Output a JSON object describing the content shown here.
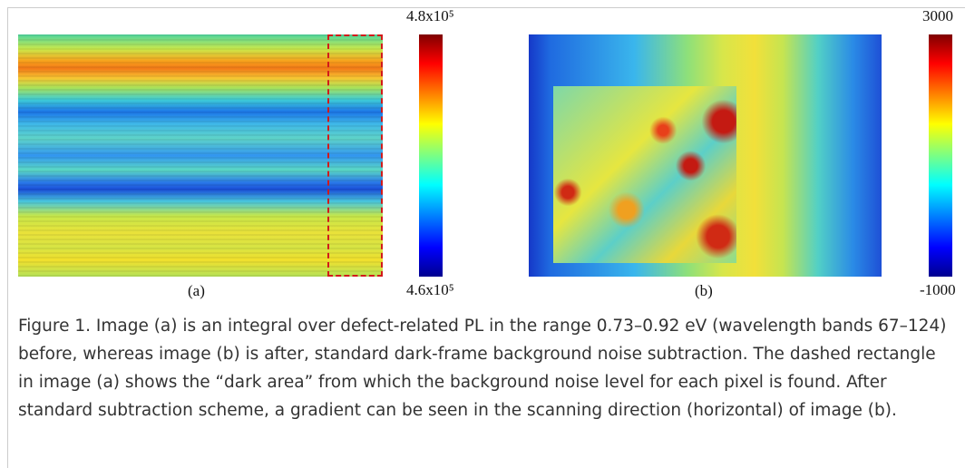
{
  "figure": {
    "panel_a": {
      "label": "(a)",
      "colorbar_max": "4.8x10⁵",
      "colorbar_min": "4.6x10⁵"
    },
    "panel_b": {
      "label": "(b)",
      "colorbar_max": "3000",
      "colorbar_min": "-1000"
    },
    "caption": "Figure 1. Image (a) is an integral over defect-related PL in the range 0.73–0.92 eV (wavelength bands 67–124) before, whereas image (b) is after, standard dark-frame background noise subtraction. The dashed rectangle in image (a) shows the “dark area” from which the background noise level for each pixel is found. After standard subtraction scheme, a gradient can be seen in the scanning direction (horizontal) of image (b)."
  }
}
